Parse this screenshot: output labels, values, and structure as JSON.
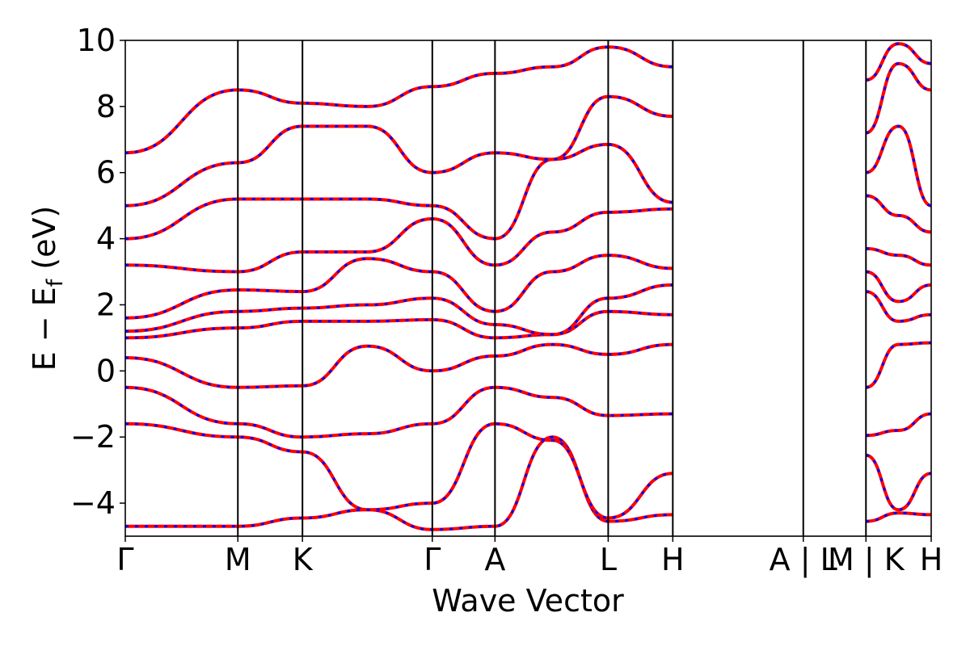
{
  "chart_data": {
    "type": "line",
    "title": "",
    "xlabel": "Wave Vector",
    "ylabel_parts": {
      "main": "E − E",
      "sub": "f",
      "unit": " (eV)"
    },
    "ylim": [
      -5,
      10
    ],
    "yticks": [
      10,
      8,
      6,
      4,
      2,
      0,
      -2,
      -4
    ],
    "ytick_labels": [
      "10",
      "8",
      "6",
      "4",
      "2",
      "0",
      "−2",
      "−4"
    ],
    "xlim": [
      0,
      12.6
    ],
    "kpoints": [
      {
        "x": 0.0,
        "label": "Γ"
      },
      {
        "x": 1.76,
        "label": "M"
      },
      {
        "x": 2.77,
        "label": "K"
      },
      {
        "x": 4.8,
        "label": "Γ"
      },
      {
        "x": 5.78,
        "label": "A"
      },
      {
        "x": 7.55,
        "label": "L"
      },
      {
        "x": 8.56,
        "label": "H"
      },
      {
        "x": 10.6,
        "label": "A | L"
      },
      {
        "x": 11.58,
        "label": "M | K"
      },
      {
        "x": 12.6,
        "label": "H"
      }
    ],
    "line_colors": {
      "series_a": "#ff0000",
      "series_b": "#0000ff"
    },
    "bands": [
      [
        -4.7,
        -4.7,
        -4.45,
        -4.2,
        -4.8,
        -4.7,
        -2.0,
        -4.55,
        -4.35,
        -2.05,
        -4.55,
        -4.3,
        -4.35
      ],
      [
        -1.6,
        -2.0,
        -2.45,
        -4.2,
        -4.0,
        -1.6,
        -2.1,
        -4.45,
        -3.1,
        -2.05,
        -2.55,
        -4.2,
        -3.1
      ],
      [
        -0.5,
        -1.6,
        -2.0,
        -1.9,
        -1.6,
        -0.5,
        -0.8,
        -1.35,
        -1.3,
        -0.8,
        -1.95,
        -1.8,
        -1.3
      ],
      [
        0.4,
        -0.5,
        -0.45,
        0.75,
        0.0,
        0.45,
        0.8,
        0.5,
        0.8,
        0.85,
        -0.5,
        0.8,
        0.85
      ],
      [
        1.0,
        1.3,
        1.5,
        1.5,
        1.55,
        1.0,
        1.1,
        1.8,
        1.7,
        1.05,
        2.4,
        1.5,
        1.7
      ],
      [
        1.2,
        1.8,
        1.9,
        2.0,
        2.2,
        1.4,
        1.1,
        2.2,
        2.6,
        2.3,
        3.0,
        2.1,
        2.6
      ],
      [
        1.6,
        2.45,
        2.4,
        3.4,
        3.0,
        1.8,
        3.0,
        3.5,
        3.1,
        3.0,
        3.7,
        3.5,
        3.2
      ],
      [
        3.2,
        3.0,
        3.6,
        3.6,
        4.6,
        3.2,
        4.2,
        4.8,
        4.9,
        4.3,
        5.3,
        4.7,
        4.2
      ],
      [
        4.0,
        5.2,
        5.2,
        5.2,
        5.0,
        4.0,
        6.4,
        6.85,
        5.1,
        5.6,
        6.0,
        7.4,
        5.0
      ],
      [
        5.0,
        6.3,
        7.4,
        7.4,
        6.0,
        6.6,
        6.4,
        8.3,
        7.7,
        6.4,
        7.2,
        9.3,
        8.5
      ],
      [
        6.6,
        8.5,
        8.1,
        8.0,
        8.6,
        9.0,
        9.2,
        9.8,
        9.2,
        9.1,
        8.8,
        9.9,
        9.3
      ]
    ]
  }
}
